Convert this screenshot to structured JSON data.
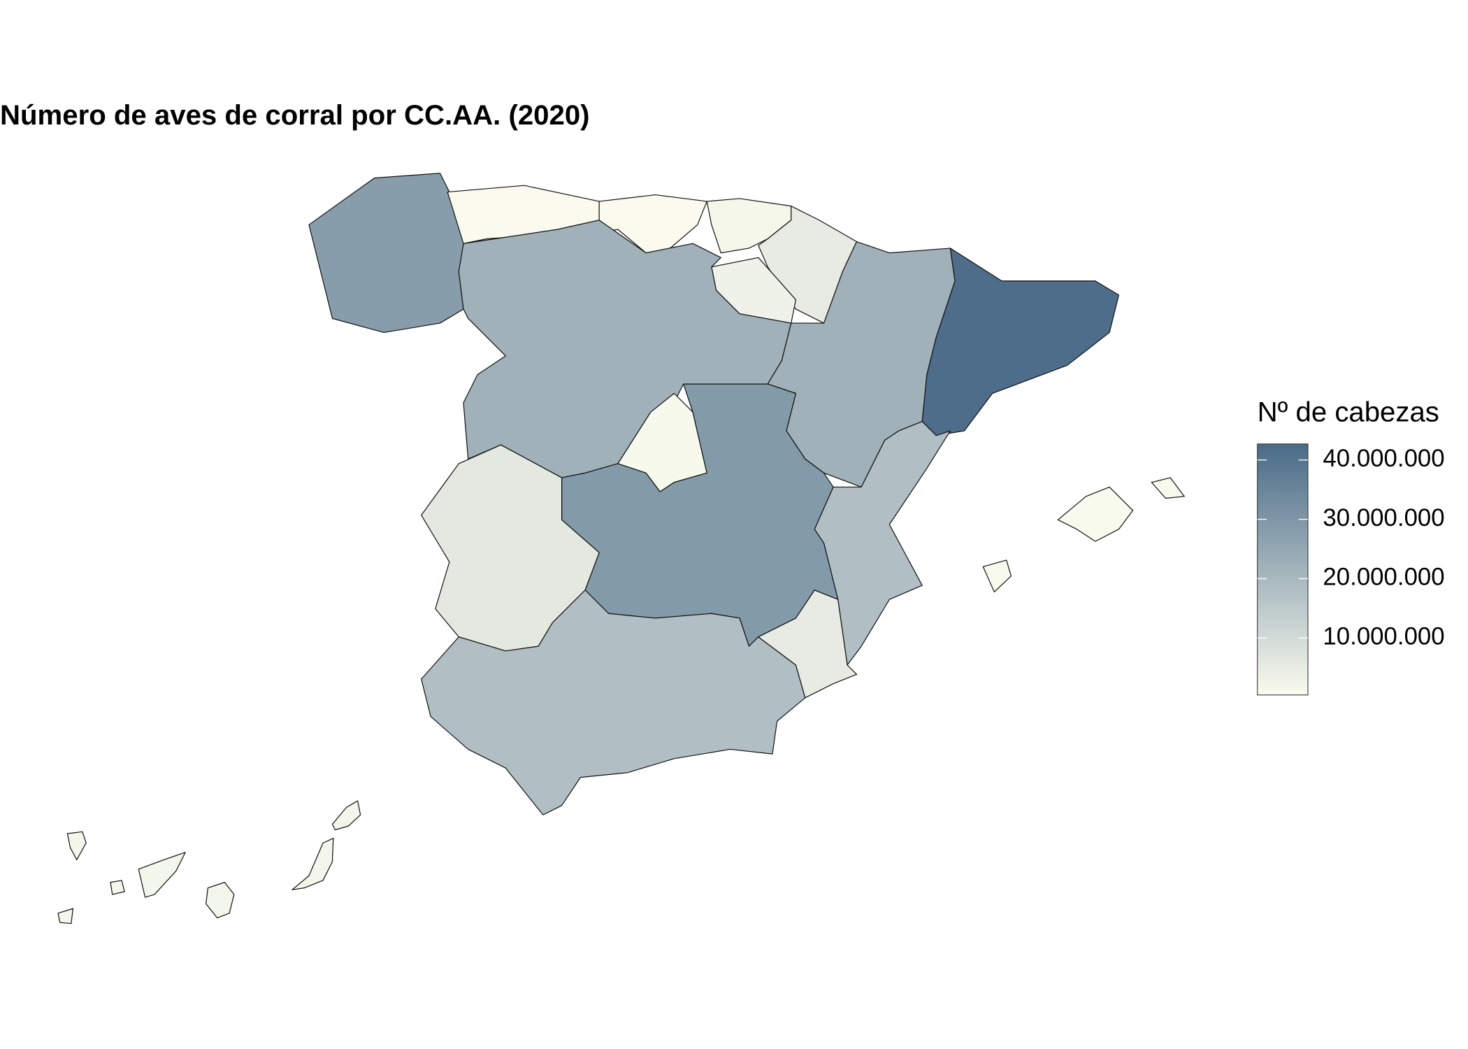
{
  "chart_data": {
    "type": "choropleth",
    "title": "Número de aves de corral por CC.AA. (2020)",
    "legend_title": "Nº de cabezas",
    "values": [
      28000000,
      500000,
      500000,
      1500000,
      5000000,
      3000000,
      22000000,
      22000000,
      42000000,
      18000000,
      1000000,
      29000000,
      6000000,
      18000000,
      5000000,
      600000,
      2000000
    ],
    "colors": [
      "#fafbee",
      "#4a6b88"
    ],
    "clim": [
      400000,
      42700000
    ],
    "ticks": [
      {
        "value": 10000000,
        "label": "10.000.000"
      },
      {
        "value": 20000000,
        "label": "20.000.000"
      },
      {
        "value": 30000000,
        "label": "30.000.000"
      },
      {
        "value": 40000000,
        "label": "40.000.000"
      }
    ]
  }
}
